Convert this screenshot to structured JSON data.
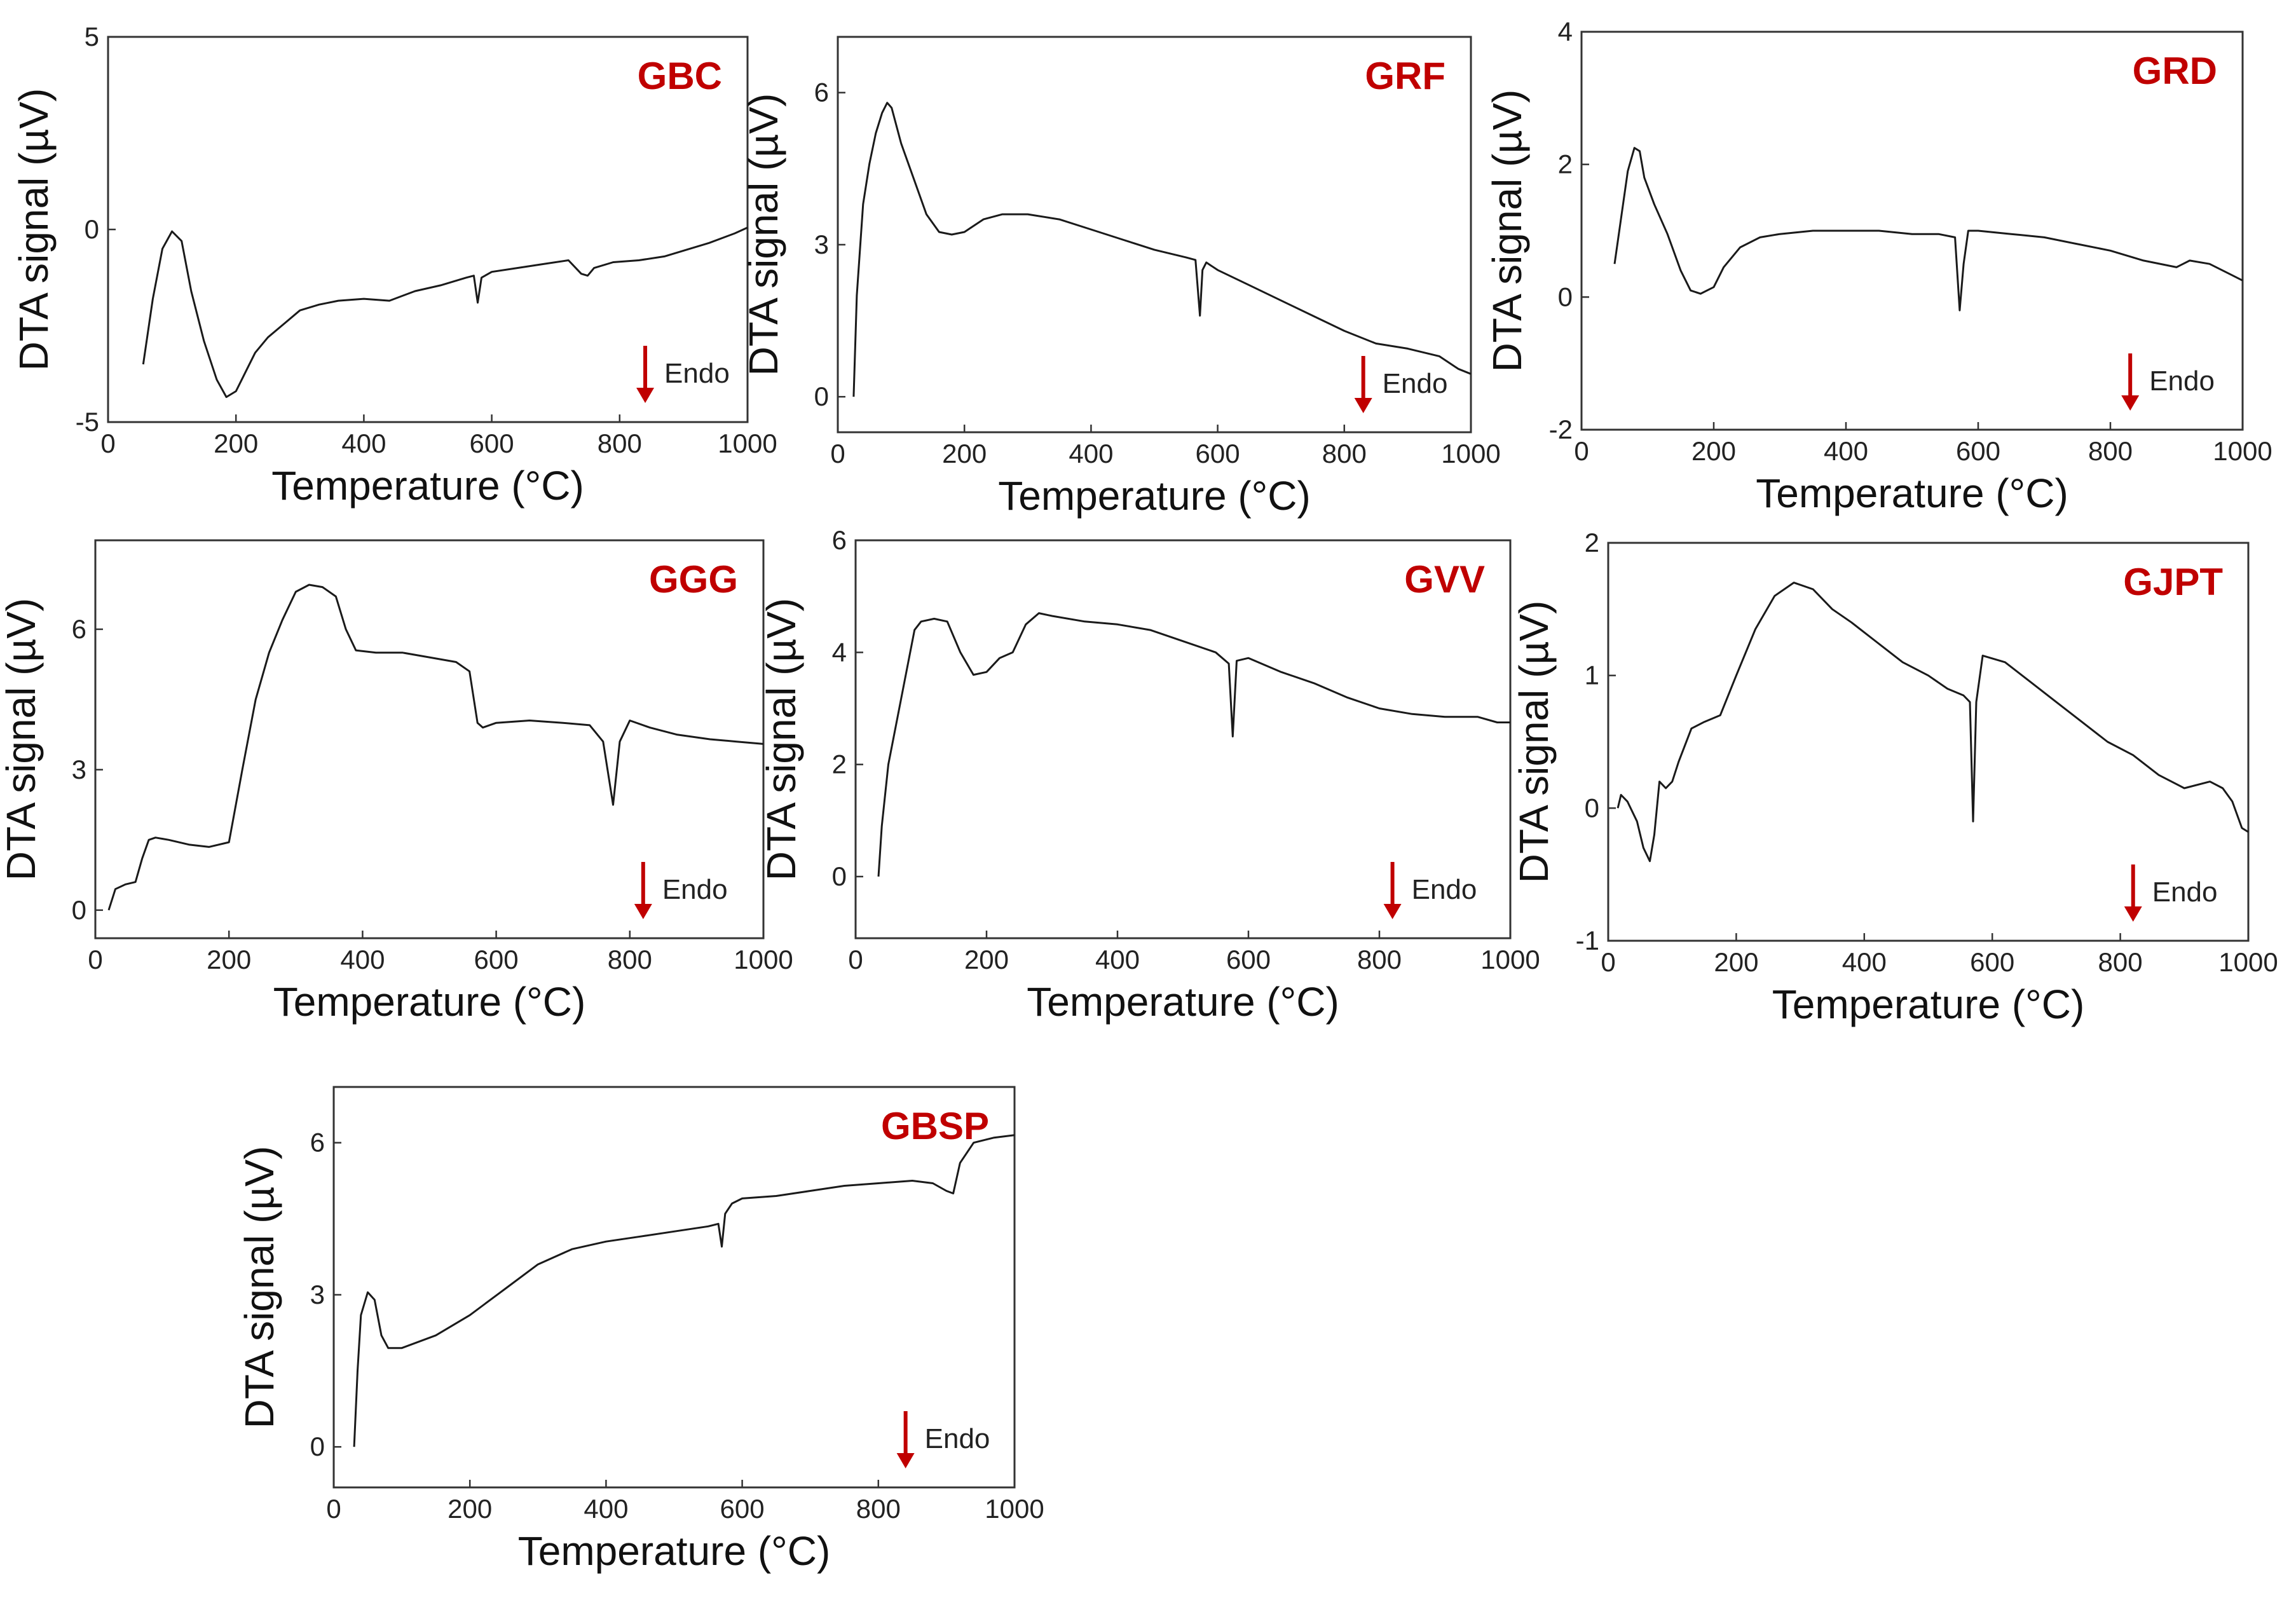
{
  "colors": {
    "title": "#c00000",
    "arrow": "#c00000",
    "line": "#1a1a1a",
    "axis": "#333333"
  },
  "chart_data": [
    {
      "type": "line",
      "title": "GBC",
      "xlabel": "Temperature (°C)",
      "ylabel": "DTA signal (µV)",
      "xlim": [
        0,
        1000
      ],
      "ylim": [
        -5,
        5
      ],
      "xticks": [
        "0",
        "200",
        "400",
        "600",
        "800",
        "1000"
      ],
      "xtick_values": [
        0,
        200,
        400,
        600,
        800,
        1000
      ],
      "yticks": [
        "-5",
        "0",
        "5"
      ],
      "ytick_values": [
        -5,
        0,
        5
      ],
      "annotation": "Endo",
      "annotation_x": 840,
      "x": [
        55,
        70,
        85,
        100,
        115,
        130,
        150,
        170,
        185,
        200,
        215,
        230,
        250,
        275,
        300,
        330,
        360,
        400,
        440,
        480,
        520,
        560,
        572,
        578,
        584,
        600,
        640,
        680,
        720,
        740,
        750,
        760,
        790,
        830,
        870,
        900,
        940,
        980,
        1000
      ],
      "y": [
        -3.5,
        -1.8,
        -0.5,
        -0.05,
        -0.3,
        -1.6,
        -2.9,
        -3.9,
        -4.35,
        -4.2,
        -3.7,
        -3.2,
        -2.8,
        -2.45,
        -2.1,
        -1.95,
        -1.85,
        -1.8,
        -1.85,
        -1.6,
        -1.45,
        -1.25,
        -1.2,
        -1.9,
        -1.25,
        -1.1,
        -1.0,
        -0.9,
        -0.8,
        -1.15,
        -1.2,
        -1.0,
        -0.85,
        -0.8,
        -0.7,
        -0.55,
        -0.35,
        -0.1,
        0.05
      ]
    },
    {
      "type": "line",
      "title": "GRF",
      "xlabel": "Temperature (°C)",
      "ylabel": "DTA signal (µV)",
      "xlim": [
        0,
        1000
      ],
      "ylim": [
        -0.7,
        7.1
      ],
      "xticks": [
        "0",
        "200",
        "400",
        "600",
        "800",
        "1000"
      ],
      "xtick_values": [
        0,
        200,
        400,
        600,
        800,
        1000
      ],
      "yticks": [
        "0",
        "3",
        "6"
      ],
      "ytick_values": [
        0,
        3,
        6
      ],
      "annotation": "Endo",
      "annotation_x": 830,
      "x": [
        25,
        30,
        40,
        50,
        60,
        70,
        78,
        85,
        100,
        120,
        140,
        160,
        180,
        200,
        230,
        260,
        300,
        350,
        400,
        450,
        500,
        550,
        565,
        572,
        576,
        582,
        600,
        650,
        700,
        750,
        800,
        850,
        900,
        950,
        980,
        1000
      ],
      "y": [
        0,
        2.0,
        3.8,
        4.6,
        5.2,
        5.6,
        5.8,
        5.7,
        5.0,
        4.3,
        3.6,
        3.25,
        3.2,
        3.25,
        3.5,
        3.6,
        3.6,
        3.5,
        3.3,
        3.1,
        2.9,
        2.75,
        2.7,
        1.6,
        2.5,
        2.65,
        2.5,
        2.2,
        1.9,
        1.6,
        1.3,
        1.05,
        0.95,
        0.8,
        0.55,
        0.45
      ]
    },
    {
      "type": "line",
      "title": "GRD",
      "xlabel": "Temperature (°C)",
      "ylabel": "DTA signal (µV)",
      "xlim": [
        0,
        1000
      ],
      "ylim": [
        -2,
        4
      ],
      "xticks": [
        "0",
        "200",
        "400",
        "600",
        "800",
        "1000"
      ],
      "xtick_values": [
        0,
        200,
        400,
        600,
        800,
        1000
      ],
      "yticks": [
        "-2",
        "0",
        "2",
        "4"
      ],
      "ytick_values": [
        -2,
        0,
        2,
        4
      ],
      "annotation": "Endo",
      "annotation_x": 830,
      "x": [
        50,
        60,
        70,
        80,
        88,
        95,
        110,
        130,
        150,
        165,
        180,
        200,
        215,
        240,
        270,
        300,
        350,
        400,
        450,
        500,
        540,
        565,
        572,
        578,
        585,
        600,
        650,
        700,
        750,
        800,
        850,
        900,
        920,
        950,
        980,
        1000
      ],
      "y": [
        0.5,
        1.2,
        1.9,
        2.25,
        2.2,
        1.8,
        1.4,
        0.95,
        0.4,
        0.1,
        0.05,
        0.15,
        0.45,
        0.75,
        0.9,
        0.95,
        1.0,
        1.0,
        1.0,
        0.95,
        0.95,
        0.9,
        -0.2,
        0.5,
        1.0,
        1.0,
        0.95,
        0.9,
        0.8,
        0.7,
        0.55,
        0.45,
        0.55,
        0.5,
        0.35,
        0.25
      ]
    },
    {
      "type": "line",
      "title": "GGG",
      "xlabel": "Temperature (°C)",
      "ylabel": "DTA signal (µV)",
      "xlim": [
        0,
        1000
      ],
      "ylim": [
        -0.6,
        7.9
      ],
      "xticks": [
        "0",
        "200",
        "400",
        "600",
        "800",
        "1000"
      ],
      "xtick_values": [
        0,
        200,
        400,
        600,
        800,
        1000
      ],
      "yticks": [
        "0",
        "3",
        "6"
      ],
      "ytick_values": [
        0,
        3,
        6
      ],
      "annotation": "Endo",
      "annotation_x": 820,
      "x": [
        20,
        30,
        45,
        60,
        70,
        80,
        90,
        110,
        140,
        170,
        200,
        220,
        240,
        260,
        280,
        300,
        320,
        340,
        360,
        375,
        390,
        420,
        460,
        500,
        540,
        560,
        572,
        580,
        600,
        650,
        700,
        740,
        760,
        775,
        785,
        800,
        830,
        870,
        920,
        960,
        1000
      ],
      "y": [
        0,
        0.45,
        0.55,
        0.6,
        1.1,
        1.5,
        1.55,
        1.5,
        1.4,
        1.35,
        1.45,
        3.0,
        4.5,
        5.5,
        6.2,
        6.8,
        6.95,
        6.9,
        6.7,
        6.0,
        5.55,
        5.5,
        5.5,
        5.4,
        5.3,
        5.1,
        4.0,
        3.9,
        4.0,
        4.05,
        4.0,
        3.95,
        3.6,
        2.25,
        3.6,
        4.05,
        3.9,
        3.75,
        3.65,
        3.6,
        3.55
      ]
    },
    {
      "type": "line",
      "title": "GVV",
      "xlabel": "Temperature (°C)",
      "ylabel": "DTA signal (µV)",
      "xlim": [
        0,
        1000
      ],
      "ylim": [
        -1.1,
        6
      ],
      "xticks": [
        "0",
        "200",
        "400",
        "600",
        "800",
        "1000"
      ],
      "xtick_values": [
        0,
        200,
        400,
        600,
        800,
        1000
      ],
      "yticks": [
        "0",
        "2",
        "4",
        "6"
      ],
      "ytick_values": [
        0,
        2,
        4,
        6
      ],
      "annotation": "Endo",
      "annotation_x": 820,
      "x": [
        35,
        40,
        50,
        70,
        90,
        100,
        120,
        140,
        160,
        180,
        200,
        220,
        240,
        260,
        280,
        300,
        350,
        400,
        450,
        500,
        550,
        570,
        576,
        582,
        600,
        650,
        700,
        750,
        800,
        850,
        900,
        950,
        980,
        1000
      ],
      "y": [
        0,
        0.9,
        2.0,
        3.2,
        4.4,
        4.55,
        4.6,
        4.55,
        4.0,
        3.6,
        3.65,
        3.9,
        4.0,
        4.5,
        4.7,
        4.65,
        4.55,
        4.5,
        4.4,
        4.2,
        4.0,
        3.8,
        2.5,
        3.85,
        3.9,
        3.65,
        3.45,
        3.2,
        3.0,
        2.9,
        2.85,
        2.85,
        2.75,
        2.75
      ]
    },
    {
      "type": "line",
      "title": "GJPT",
      "xlabel": "Temperature (°C)",
      "ylabel": "DTA signal (µV)",
      "xlim": [
        0,
        1000
      ],
      "ylim": [
        -1,
        2
      ],
      "xticks": [
        "0",
        "200",
        "400",
        "600",
        "800",
        "1000"
      ],
      "xtick_values": [
        0,
        200,
        400,
        600,
        800,
        1000
      ],
      "yticks": [
        "-1",
        "0",
        "1",
        "2"
      ],
      "ytick_values": [
        -1,
        0,
        1,
        2
      ],
      "annotation": "Endo",
      "annotation_x": 820,
      "x": [
        15,
        20,
        30,
        45,
        55,
        65,
        72,
        80,
        90,
        100,
        110,
        130,
        150,
        175,
        200,
        230,
        260,
        290,
        320,
        350,
        380,
        420,
        460,
        500,
        530,
        555,
        565,
        570,
        575,
        585,
        620,
        660,
        700,
        740,
        780,
        820,
        860,
        900,
        940,
        960,
        975,
        990,
        1000
      ],
      "y": [
        0,
        0.1,
        0.05,
        -0.1,
        -0.3,
        -0.4,
        -0.2,
        0.2,
        0.15,
        0.2,
        0.35,
        0.6,
        0.65,
        0.7,
        1.0,
        1.35,
        1.6,
        1.7,
        1.65,
        1.5,
        1.4,
        1.25,
        1.1,
        1.0,
        0.9,
        0.85,
        0.8,
        -0.1,
        0.8,
        1.15,
        1.1,
        0.95,
        0.8,
        0.65,
        0.5,
        0.4,
        0.25,
        0.15,
        0.2,
        0.15,
        0.05,
        -0.15,
        -0.18
      ]
    },
    {
      "type": "line",
      "title": "GBSP",
      "xlabel": "Temperature (°C)",
      "ylabel": "DTA signal (µV)",
      "xlim": [
        0,
        1000
      ],
      "ylim": [
        -0.8,
        7.1
      ],
      "xticks": [
        "0",
        "200",
        "400",
        "600",
        "800",
        "1000"
      ],
      "xtick_values": [
        0,
        200,
        400,
        600,
        800,
        1000
      ],
      "yticks": [
        "0",
        "3",
        "6"
      ],
      "ytick_values": [
        0,
        3,
        6
      ],
      "annotation": "Endo",
      "annotation_x": 840,
      "x": [
        30,
        35,
        40,
        50,
        60,
        70,
        80,
        100,
        150,
        200,
        250,
        300,
        350,
        400,
        450,
        500,
        550,
        565,
        570,
        575,
        585,
        600,
        650,
        700,
        750,
        800,
        850,
        880,
        900,
        910,
        920,
        940,
        970,
        1000
      ],
      "y": [
        0,
        1.5,
        2.6,
        3.05,
        2.9,
        2.2,
        1.95,
        1.95,
        2.2,
        2.6,
        3.1,
        3.6,
        3.9,
        4.05,
        4.15,
        4.25,
        4.35,
        4.4,
        3.95,
        4.6,
        4.8,
        4.9,
        4.95,
        5.05,
        5.15,
        5.2,
        5.25,
        5.2,
        5.05,
        5.0,
        5.6,
        6.0,
        6.1,
        6.15
      ]
    }
  ]
}
